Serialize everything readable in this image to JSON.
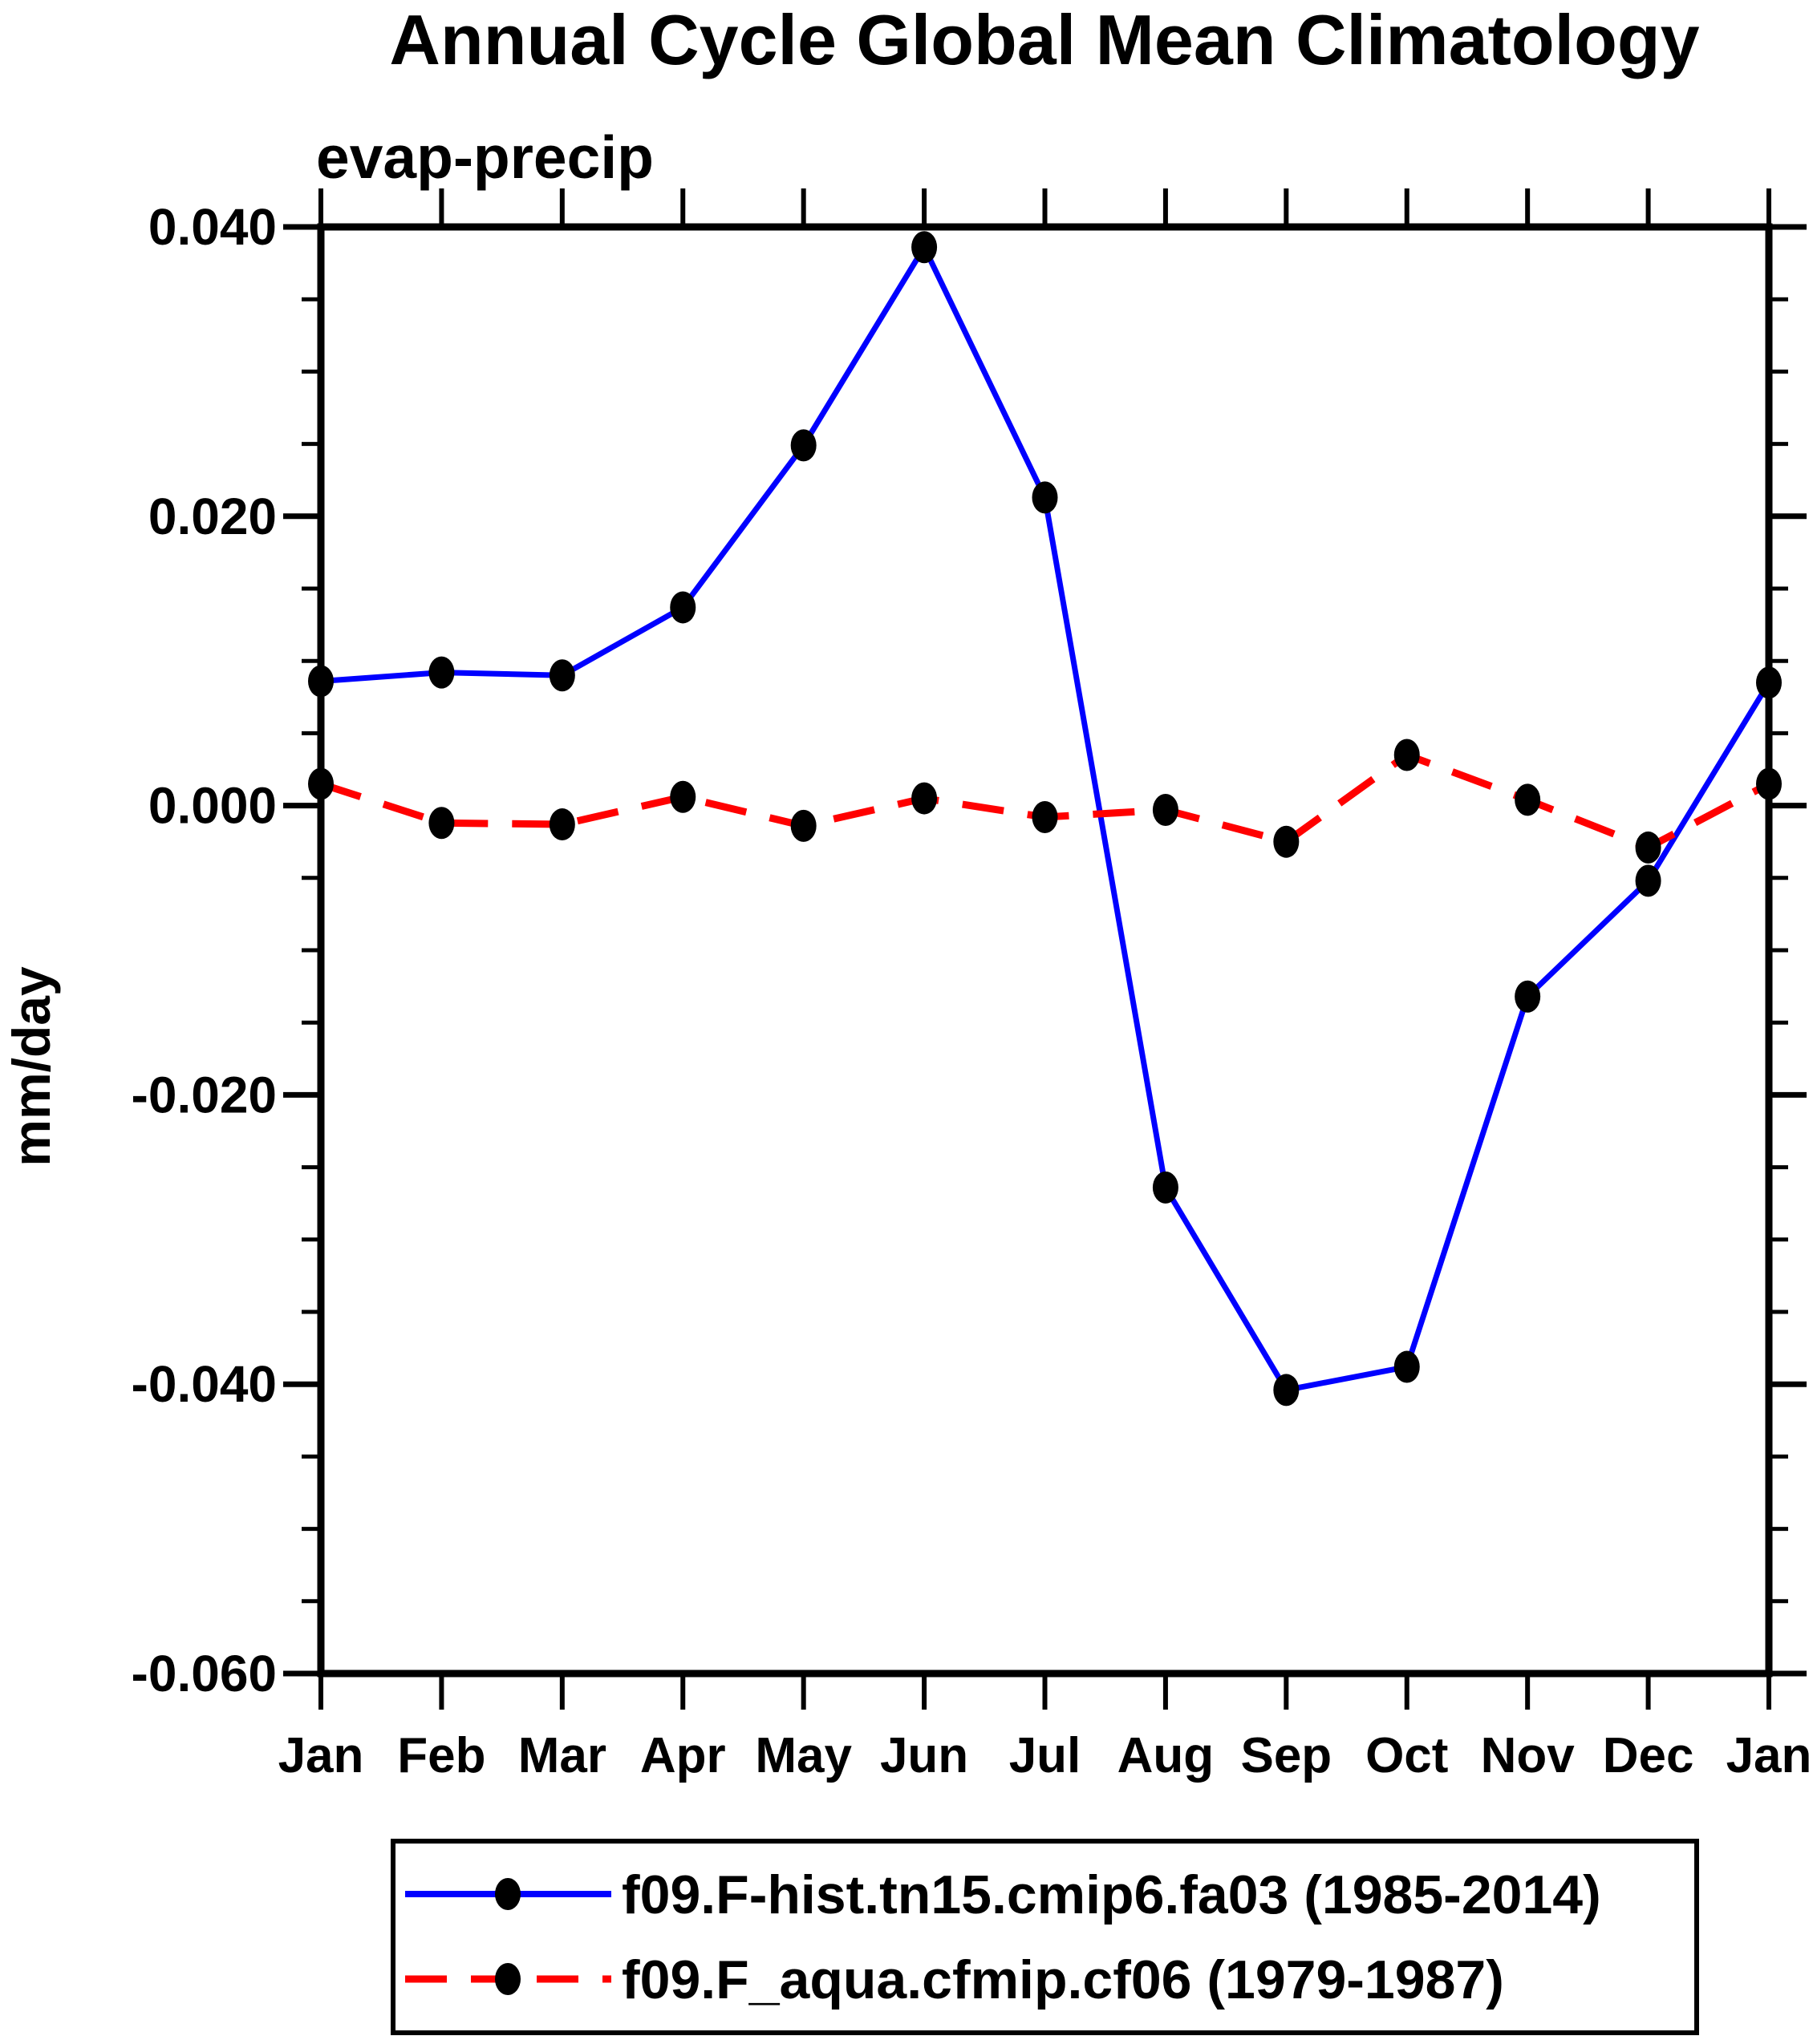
{
  "chart_data": {
    "type": "line",
    "title": "Annual Cycle Global Mean Climatology",
    "subtitle": "evap-precip",
    "ylabel": "mm/day",
    "xlabel": "",
    "categories": [
      "Jan",
      "Feb",
      "Mar",
      "Apr",
      "May",
      "Jun",
      "Jul",
      "Aug",
      "Sep",
      "Oct",
      "Nov",
      "Dec",
      "Jan"
    ],
    "ylim": [
      -0.06,
      0.04
    ],
    "y_major_step": 0.02,
    "y_minor_step": 0.005,
    "y_tick_labels": [
      "0.040",
      "0.020",
      "0.000",
      "-0.020",
      "-0.040",
      "-0.060"
    ],
    "grid": "off",
    "frame": "box-with-outward-ticks",
    "legend_position": "bottom-box",
    "colors": {
      "series1": "#0000ff",
      "series2": "#ff0000",
      "marker": "#000000",
      "axis": "#000000",
      "background": "#ffffff"
    },
    "series": [
      {
        "name": "f09.F-hist.tn15.cmip6.fa03 (1985-2014)",
        "color": "#0000ff",
        "line_style": "solid",
        "marker": "filled-circle",
        "marker_color": "#000000",
        "values": [
          0.0086,
          0.0092,
          0.009,
          0.0137,
          0.0249,
          0.0386,
          0.0213,
          -0.0264,
          -0.0404,
          -0.0388,
          -0.0132,
          -0.0052,
          0.0085
        ]
      },
      {
        "name": "f09.F_aqua.cfmip.cf06 (1979-1987)",
        "color": "#ff0000",
        "line_style": "dashed",
        "marker": "filled-circle",
        "marker_color": "#000000",
        "values": [
          0.0015,
          -0.0012,
          -0.0013,
          0.0006,
          -0.0014,
          0.0005,
          -0.0008,
          -0.0003,
          -0.0025,
          0.0035,
          0.0004,
          -0.0029,
          0.0015
        ]
      }
    ]
  }
}
